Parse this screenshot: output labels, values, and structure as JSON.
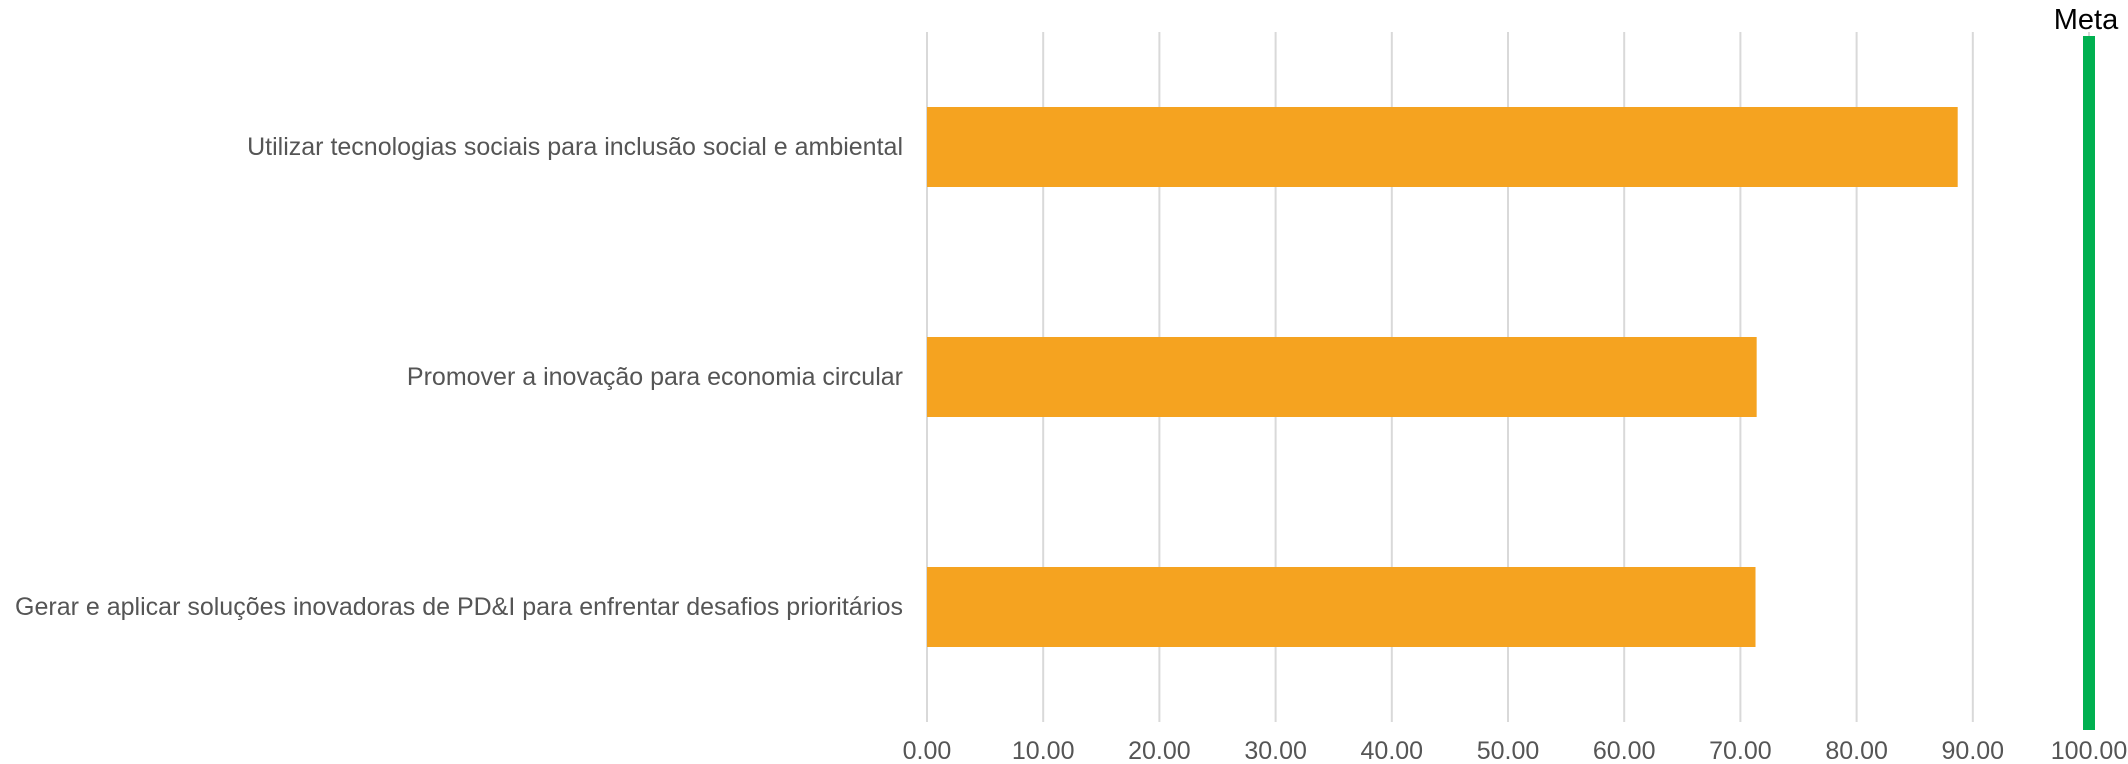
{
  "chart_data": {
    "type": "bar",
    "orientation": "horizontal",
    "categories": [
      "Utilizar tecnologias sociais para inclusão social e ambiental",
      "Promover a inovação para economia circular",
      "Gerar e aplicar soluções inovadoras de PD&I para enfrentar desafios prioritários"
    ],
    "values": [
      88.7,
      71.4,
      71.3
    ],
    "xlim": [
      0,
      100
    ],
    "xticks": [
      "0.00",
      "10.00",
      "20.00",
      "30.00",
      "40.00",
      "50.00",
      "60.00",
      "70.00",
      "80.00",
      "90.00",
      "100.00"
    ],
    "xtick_values": [
      0,
      10,
      20,
      30,
      40,
      50,
      60,
      70,
      80,
      90,
      100
    ],
    "grid": true,
    "bar_color": "#F5A320",
    "target": {
      "label": "Meta",
      "value": 100,
      "color": "#00B050"
    }
  }
}
